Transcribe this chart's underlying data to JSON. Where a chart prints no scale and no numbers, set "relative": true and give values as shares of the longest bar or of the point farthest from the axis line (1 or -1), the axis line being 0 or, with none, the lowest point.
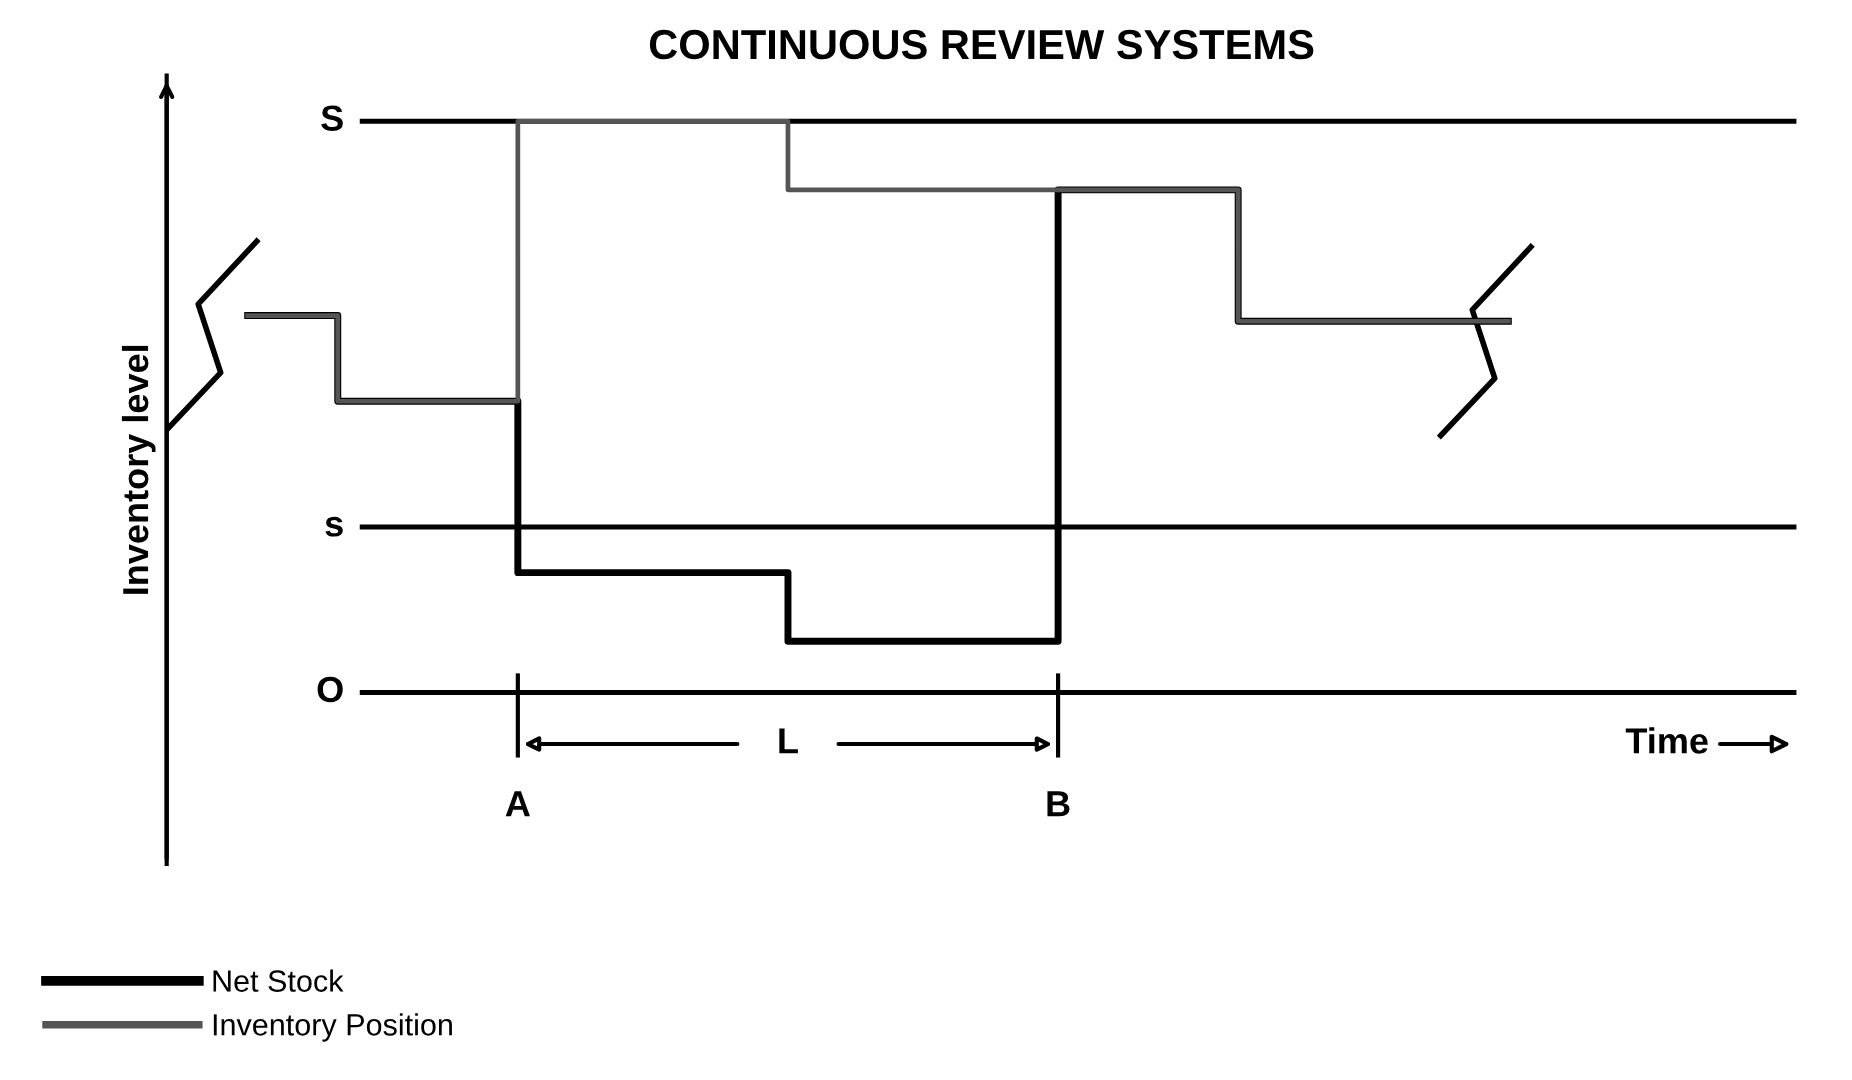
{
  "chart_data": {
    "type": "step",
    "title": "CONTINUOUS REVIEW SYSTEMS",
    "ylabel": "Inventory level",
    "relative": true,
    "categories": [
      null,
      null,
      null,
      null,
      null,
      null,
      null,
      null,
      null,
      null,
      null,
      null,
      null,
      null,
      null
    ],
    "series": [
      {
        "name": "Net Stock",
        "color": "#000000",
        "values": [
          0.66,
          0.51,
          0.51,
          0.21,
          0.21,
          0.21,
          0.09,
          0.09,
          0.09,
          0.88,
          0.88,
          0.65,
          0.65,
          0.65,
          0.65
        ]
      },
      {
        "name": "Inventory Position",
        "color": "#555555",
        "values": [
          0.66,
          0.51,
          0.51,
          1.0,
          1.0,
          1.0,
          0.88,
          0.88,
          0.88,
          0.88,
          0.88,
          0.65,
          0.65,
          0.65,
          0.65
        ]
      }
    ],
    "ref_lines": [
      {
        "axis": "y",
        "value": 1.0,
        "label": "S"
      },
      {
        "axis": "y",
        "value": 0.29,
        "label": "s"
      },
      {
        "axis": "y",
        "value": 0.0,
        "label": "O"
      }
    ],
    "annotations": [
      "A",
      "B",
      "L",
      "Time"
    ],
    "legend": "bottom left",
    "marker": "none",
    "line_style": "solid"
  }
}
